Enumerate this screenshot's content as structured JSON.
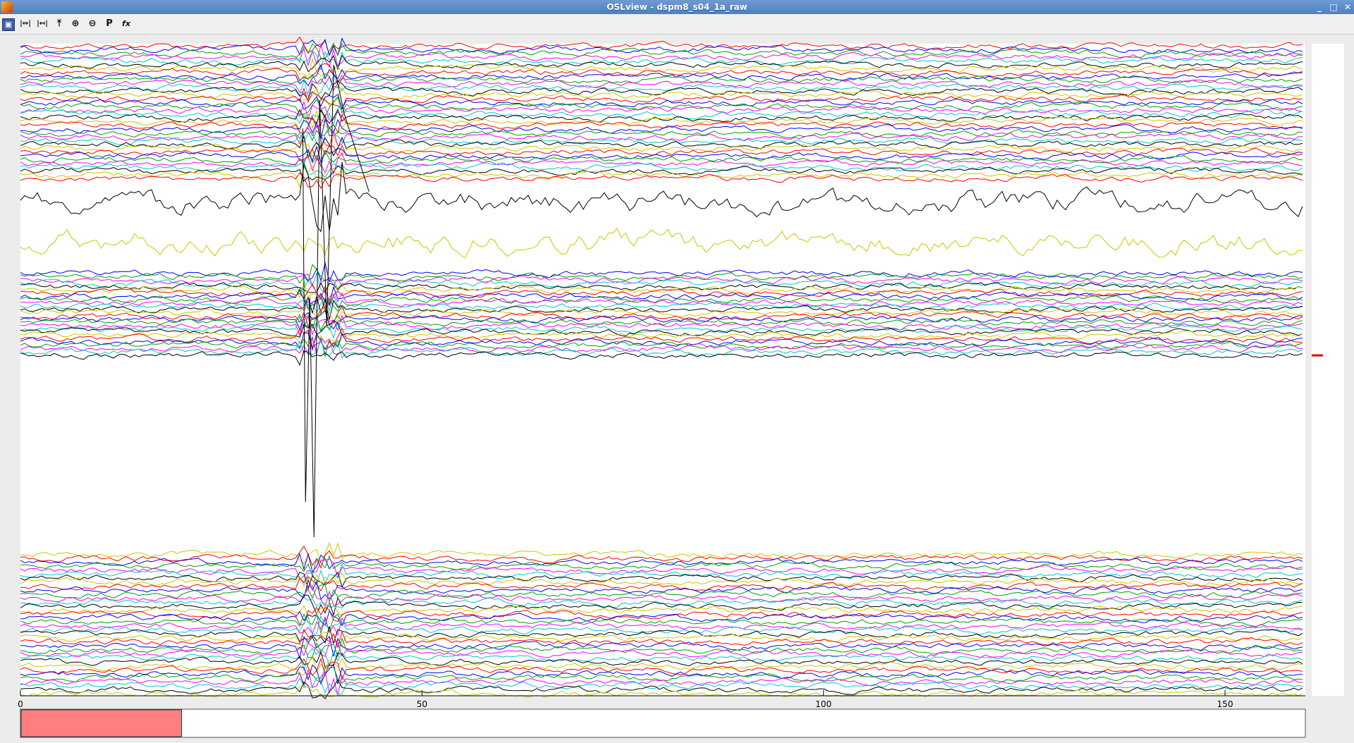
{
  "window": {
    "title": "OSLview - dspm8_s04_1a_raw",
    "minimize": "_",
    "maximize": "□",
    "close": "✕"
  },
  "toolbar": {
    "tools": [
      {
        "name": "save-icon",
        "glyph": "▣"
      },
      {
        "name": "expand-horizontal-icon",
        "glyph": "|↔|"
      },
      {
        "name": "contract-horizontal-icon",
        "glyph": "|↤|"
      },
      {
        "name": "expand-vertical-icon",
        "glyph": "⤒"
      },
      {
        "name": "zoom-in-icon",
        "glyph": "⊕"
      },
      {
        "name": "zoom-out-icon",
        "glyph": "⊖"
      },
      {
        "name": "p-icon",
        "glyph": "P"
      },
      {
        "name": "function-icon",
        "glyph": "fx"
      }
    ]
  },
  "plot": {
    "x_ticks": [
      {
        "value": 0,
        "label": "0"
      },
      {
        "value": 50,
        "label": "50"
      },
      {
        "value": 100,
        "label": "100"
      },
      {
        "value": 150,
        "label": "150"
      }
    ],
    "x_range": [
      0,
      160
    ],
    "groups": [
      {
        "top": 0.0,
        "bottom": 0.21,
        "count": 36
      },
      {
        "top": 0.35,
        "bottom": 0.48,
        "count": 26
      },
      {
        "top": 0.78,
        "bottom": 1.0,
        "count": 36
      }
    ],
    "wide_traces": [
      {
        "color": "#000000",
        "level": 0.245
      },
      {
        "color": "#c8c800",
        "level": 0.305
      }
    ],
    "artifact_range": [
      34.5,
      40.5
    ],
    "trace_colors": [
      "#ff0000",
      "#0000ff",
      "#00a000",
      "#ff00ff",
      "#00c8c8",
      "#000000",
      "#c8c800"
    ],
    "red_marker_level": 0.478
  },
  "scrollbar": {
    "visible_fraction": 0.125,
    "colors": {
      "thumb": "#ff7f7f"
    }
  }
}
